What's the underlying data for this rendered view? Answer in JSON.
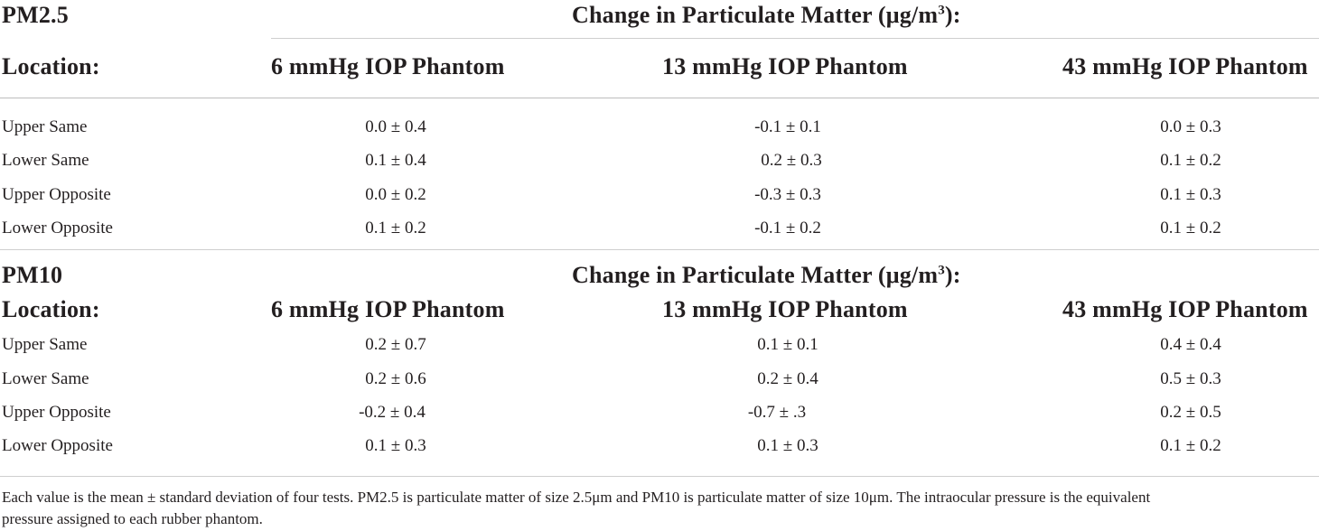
{
  "sections": [
    {
      "pollutant": "PM2.5",
      "change_label": "Change in Particulate Matter (μg/m",
      "change_sup": "3",
      "change_suffix": "):",
      "location_label": "Location:",
      "columns": [
        "6 mmHg IOP Phantom",
        "13 mmHg IOP Phantom",
        "43 mmHg IOP Phantom"
      ],
      "rows": [
        {
          "location": "Upper Same",
          "values": [
            "0.0 ± 0.4",
            "-0.1 ± 0.1",
            "0.0 ± 0.3"
          ]
        },
        {
          "location": "Lower Same",
          "values": [
            "0.1 ± 0.4",
            "0.2 ± 0.3",
            "0.1 ± 0.2"
          ]
        },
        {
          "location": "Upper Opposite",
          "values": [
            "0.0 ± 0.2",
            "-0.3 ± 0.3",
            "0.1 ± 0.3"
          ]
        },
        {
          "location": "Lower Opposite",
          "values": [
            "0.1 ± 0.2",
            "-0.1 ± 0.2",
            "0.1 ± 0.2"
          ]
        }
      ]
    },
    {
      "pollutant": "PM10",
      "change_label": "Change in Particulate Matter (μg/m",
      "change_sup": "3",
      "change_suffix": "):",
      "location_label": "Location:",
      "columns": [
        "6 mmHg IOP Phantom",
        "13 mmHg IOP Phantom",
        "43 mmHg IOP Phantom"
      ],
      "rows": [
        {
          "location": "Upper Same",
          "values": [
            "0.2 ± 0.7",
            "0.1 ± 0.1",
            "0.4 ± 0.4"
          ]
        },
        {
          "location": "Lower Same",
          "values": [
            "0.2 ± 0.6",
            "0.2 ± 0.4",
            "0.5 ± 0.3"
          ]
        },
        {
          "location": "Upper Opposite",
          "values": [
            "-0.2 ± 0.4",
            "-0.7 ± .3",
            "0.2 ± 0.5"
          ]
        },
        {
          "location": "Lower Opposite",
          "values": [
            "0.1 ± 0.3",
            "0.1 ± 0.3",
            "0.1 ± 0.2"
          ]
        }
      ]
    }
  ],
  "footnote": {
    "line1": "Each value is the mean ± standard deviation of four tests. PM2.5 is particulate matter of size 2.5μm and PM10 is particulate matter of size 10μm. The intraocular pressure is the equivalent",
    "line2": "pressure assigned to each rubber phantom."
  }
}
